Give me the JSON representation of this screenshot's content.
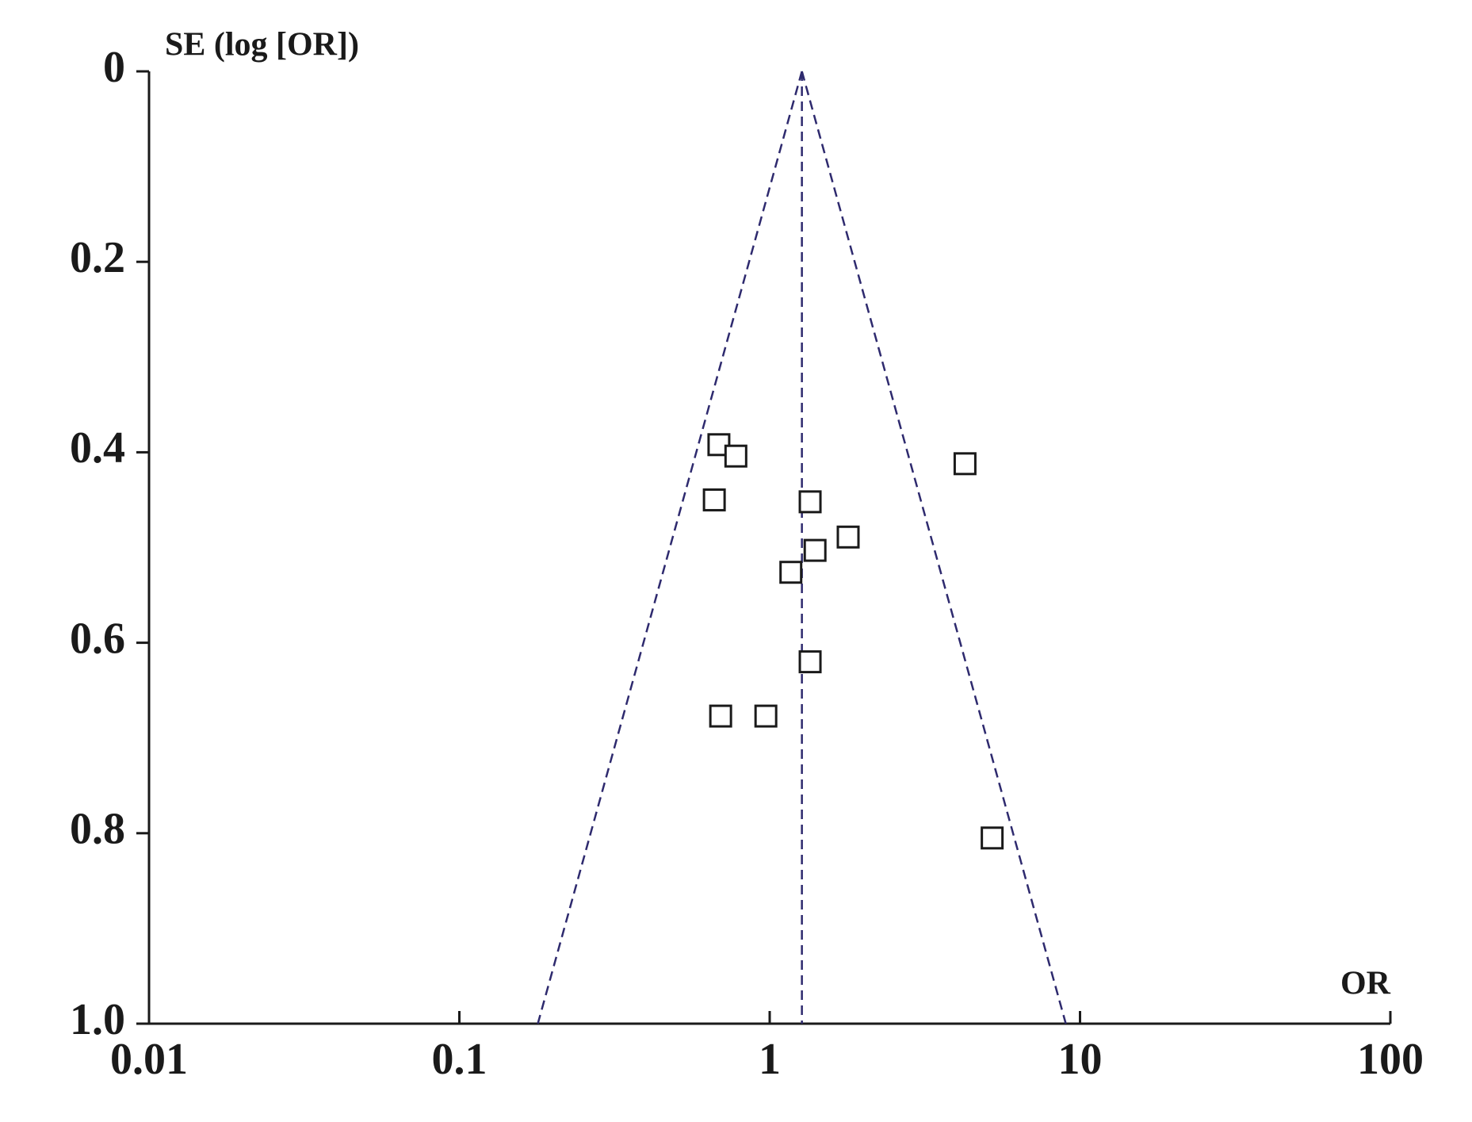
{
  "chart_data": {
    "type": "scatter",
    "y_label": "SE (log [OR])",
    "x_label": "OR",
    "series": [
      {
        "name": null,
        "color": "#1a1a1a",
        "x": [
          0.686,
          0.778,
          4.26,
          0.663,
          1.35,
          1.79,
          1.4,
          1.17,
          1.35,
          0.695,
          0.972,
          5.21
        ],
        "values": [
          0.392,
          0.404,
          0.412,
          0.45,
          0.452,
          0.489,
          0.503,
          0.526,
          0.62,
          0.677,
          0.677,
          0.805
        ]
      }
    ],
    "xlim": [
      0.01,
      100
    ],
    "xticks": [
      0.01,
      0.1,
      1,
      10,
      100
    ],
    "xscale": "log",
    "ylim": [
      0,
      1
    ],
    "yticks": [
      0,
      0.2,
      0.4,
      0.6,
      0.8,
      {
        "value": 1,
        "label": "1.0"
      }
    ],
    "y_inverted": true,
    "reference_line_x": 1.27,
    "funnel_x_at_ylim_max": [
      0.179,
      9.0
    ],
    "reference_color": "#2e2a6e",
    "grid": false
  }
}
